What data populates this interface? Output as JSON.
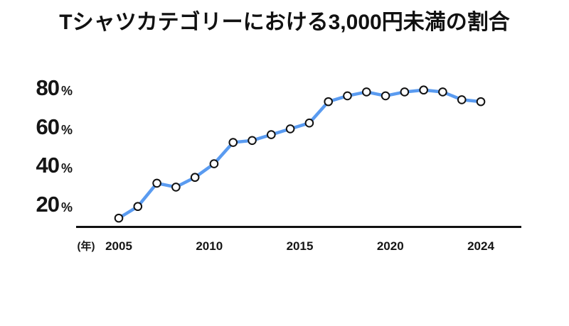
{
  "chart_data": {
    "type": "line",
    "title": "Tシャツカテゴリーにおける3,000円未満の割合",
    "xlabel": "(年)",
    "ylabel": "%",
    "x": [
      2005,
      2006,
      2007,
      2008,
      2009,
      2010,
      2011,
      2012,
      2013,
      2014,
      2015,
      2016,
      2017,
      2018,
      2019,
      2020,
      2021,
      2022,
      2023,
      2024
    ],
    "values": [
      13,
      19,
      31,
      29,
      34,
      41,
      52,
      53,
      56,
      59,
      62,
      73,
      76,
      78,
      76,
      78,
      79,
      78,
      74,
      73
    ],
    "series_name": "3,000円未満の割合",
    "x_tick_labels": [
      "2005",
      "2010",
      "2015",
      "2020",
      "2024"
    ],
    "y_ticks": [
      {
        "value": 20,
        "label": "20"
      },
      {
        "value": 40,
        "label": "40"
      },
      {
        "value": 60,
        "label": "60"
      },
      {
        "value": 80,
        "label": "80"
      }
    ],
    "percent_suffix": "%",
    "ylim": [
      8.5,
      85
    ],
    "grid": false,
    "legend": false,
    "line_color": "#5A9BF0",
    "marker_fill": "#ffffff",
    "marker_border": "#111111",
    "axis_color": "#111111",
    "background": "#ffffff"
  }
}
